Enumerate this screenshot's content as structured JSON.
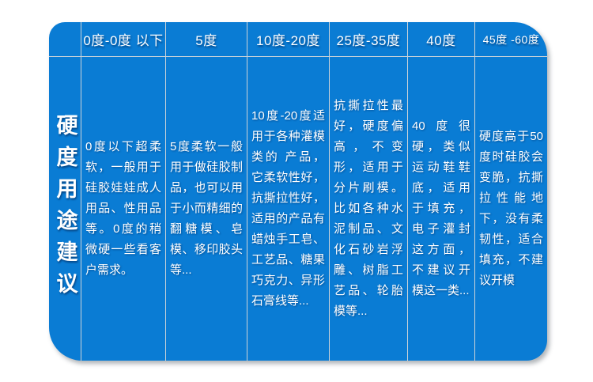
{
  "page": {
    "background_color": "#ffffff"
  },
  "table": {
    "accent_color": "#0a7cd4",
    "grid_line_color": "#ccd3d8",
    "text_color": "#ffffff",
    "row_label": "硬度用途建议",
    "columns": [
      {
        "header": "0度-0度 以下",
        "body": "0度以下超柔软，一般用于硅胶娃娃成人用品、性用品等。0度的稍微硬一些看客户需求。"
      },
      {
        "header": "5度",
        "body": "5度柔软一般用于做硅胶制品，也可以用于小而精细的翻糖模、皂模、移印胶头等..."
      },
      {
        "header": "10度-20度",
        "body": "10度-20度适用于各种灌模类的 产品，它柔软性好，抗撕拉性好，适用的产品有蜡烛手工皂、工艺品、糖果巧克力、异形石膏线等..."
      },
      {
        "header": "25度-35度",
        "body": "抗撕拉性最好，硬度偏高，不变形，适用于分片刷模。比如各种水泥制品、文化石砂岩浮雕、树脂工艺品、轮胎模等..."
      },
      {
        "header": "40度",
        "body": "40度很 硬，类似运动鞋鞋底，适用于填充，电子灌封这方面，不建议开模这一类..."
      },
      {
        "header": "45度 -60度",
        "body": "硬度高于50度时硅胶会变脆，抗撕拉性能地下，没有柔韧性，适合填充，不建议开模"
      }
    ]
  }
}
